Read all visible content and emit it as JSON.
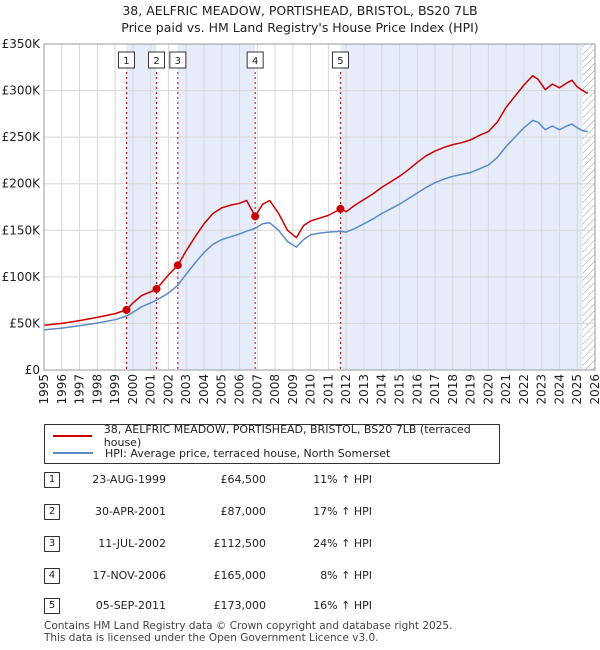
{
  "title_line1": "38, AELFRIC MEADOW, PORTISHEAD, BRISTOL, BS20 7LB",
  "title_line2": "Price paid vs. HM Land Registry's House Price Index (HPI)",
  "colors": {
    "price_line": "#cc0000",
    "hpi_line": "#5b8ac8",
    "shade": "#e6ecfa",
    "marker_line": "#cc0000",
    "grid": "#d8d8d8"
  },
  "chart_data": {
    "type": "line",
    "title": "38, AELFRIC MEADOW, PORTISHEAD, BRISTOL, BS20 7LB — Price paid vs. HM Land Registry's House Price Index (HPI)",
    "xlabel": "",
    "ylabel": "",
    "xlim": [
      1995,
      2026
    ],
    "ylim": [
      0,
      350000
    ],
    "yticks": [
      0,
      50000,
      100000,
      150000,
      200000,
      250000,
      300000,
      350000
    ],
    "ytick_labels": [
      "£0",
      "£50K",
      "£100K",
      "£150K",
      "£200K",
      "£250K",
      "£300K",
      "£350K"
    ],
    "xticks": [
      1995,
      1996,
      1997,
      1998,
      1999,
      2000,
      2001,
      2002,
      2003,
      2004,
      2005,
      2006,
      2007,
      2008,
      2009,
      2010,
      2011,
      2012,
      2013,
      2014,
      2015,
      2016,
      2017,
      2018,
      2019,
      2020,
      2021,
      2022,
      2023,
      2024,
      2025,
      2026
    ],
    "grid": true,
    "shaded_periods": [
      [
        1999.64,
        2001.33
      ],
      [
        2002.53,
        2006.88
      ],
      [
        2011.68,
        2025.3
      ]
    ],
    "future_hatch_from": 2025.3,
    "series": [
      {
        "name": "38, AELFRIC MEADOW, PORTISHEAD, BRISTOL, BS20 7LB (terraced house)",
        "color": "#cc0000",
        "x": [
          1995.0,
          1996.0,
          1997.0,
          1998.0,
          1999.0,
          1999.64,
          2000.0,
          2000.5,
          2001.0,
          2001.33,
          2002.0,
          2002.53,
          2003.0,
          2003.5,
          2004.0,
          2004.5,
          2005.0,
          2005.5,
          2006.0,
          2006.4,
          2006.88,
          2007.3,
          2007.7,
          2008.2,
          2008.7,
          2009.2,
          2009.6,
          2010.0,
          2010.5,
          2011.0,
          2011.68,
          2012.0,
          2012.5,
          2013.0,
          2013.5,
          2014.0,
          2014.5,
          2015.0,
          2015.5,
          2016.0,
          2016.5,
          2017.0,
          2017.5,
          2018.0,
          2018.5,
          2019.0,
          2019.5,
          2020.0,
          2020.5,
          2021.0,
          2021.5,
          2022.0,
          2022.5,
          2022.8,
          2023.2,
          2023.6,
          2024.0,
          2024.4,
          2024.7,
          2025.0,
          2025.3,
          2025.6
        ],
        "values": [
          48000,
          50000,
          53000,
          56500,
          60500,
          64500,
          72000,
          80000,
          84000,
          87000,
          102000,
          112500,
          128000,
          143000,
          157000,
          168000,
          174000,
          177000,
          179000,
          182000,
          165000,
          178000,
          182000,
          168000,
          150000,
          142000,
          155000,
          160000,
          163000,
          166000,
          173000,
          170000,
          177000,
          183000,
          189000,
          196000,
          202000,
          208000,
          215000,
          223000,
          230000,
          235000,
          239000,
          242000,
          244000,
          247000,
          252000,
          256000,
          266000,
          282000,
          294000,
          306000,
          316000,
          312000,
          301000,
          307000,
          303000,
          308000,
          311000,
          304000,
          300000,
          297000
        ]
      },
      {
        "name": "HPI: Average price, terraced house, North Somerset",
        "color": "#5b8ac8",
        "x": [
          1995.0,
          1996.0,
          1997.0,
          1998.0,
          1999.0,
          1999.64,
          2000.0,
          2000.5,
          2001.0,
          2001.33,
          2002.0,
          2002.53,
          2003.0,
          2003.5,
          2004.0,
          2004.5,
          2005.0,
          2005.5,
          2006.0,
          2006.4,
          2006.88,
          2007.3,
          2007.7,
          2008.2,
          2008.7,
          2009.2,
          2009.6,
          2010.0,
          2010.5,
          2011.0,
          2011.68,
          2012.0,
          2012.5,
          2013.0,
          2013.5,
          2014.0,
          2014.5,
          2015.0,
          2015.5,
          2016.0,
          2016.5,
          2017.0,
          2017.5,
          2018.0,
          2018.5,
          2019.0,
          2019.5,
          2020.0,
          2020.5,
          2021.0,
          2021.5,
          2022.0,
          2022.5,
          2022.8,
          2023.2,
          2023.6,
          2024.0,
          2024.4,
          2024.7,
          2025.0,
          2025.3,
          2025.6
        ],
        "values": [
          43000,
          45000,
          47500,
          50500,
          54000,
          58000,
          62000,
          68000,
          72000,
          75000,
          82500,
          91000,
          103000,
          115000,
          126000,
          135000,
          140000,
          143000,
          146000,
          149000,
          152000,
          157000,
          158000,
          150000,
          138000,
          132000,
          140000,
          145000,
          147000,
          148000,
          149000,
          148000,
          152000,
          157000,
          162000,
          168000,
          173000,
          178000,
          184000,
          190000,
          196000,
          201000,
          205000,
          208000,
          210000,
          212000,
          216000,
          220000,
          228000,
          240000,
          250000,
          260000,
          268000,
          266000,
          258000,
          262000,
          258000,
          262000,
          264000,
          260000,
          257000,
          256000
        ]
      }
    ],
    "markers": [
      {
        "label": "1",
        "x": 1999.64,
        "y": 64500
      },
      {
        "label": "2",
        "x": 2001.33,
        "y": 87000
      },
      {
        "label": "3",
        "x": 2002.53,
        "y": 112500
      },
      {
        "label": "4",
        "x": 2006.88,
        "y": 165000
      },
      {
        "label": "5",
        "x": 2011.68,
        "y": 173000
      }
    ]
  },
  "legend": {
    "price_label": "38, AELFRIC MEADOW, PORTISHEAD, BRISTOL, BS20 7LB (terraced house)",
    "hpi_label": "HPI: Average price, terraced house, North Somerset"
  },
  "sales": [
    {
      "num": "1",
      "date": "23-AUG-1999",
      "price": "£64,500",
      "hpi": "11% ↑ HPI"
    },
    {
      "num": "2",
      "date": "30-APR-2001",
      "price": "£87,000",
      "hpi": "17% ↑ HPI"
    },
    {
      "num": "3",
      "date": "11-JUL-2002",
      "price": "£112,500",
      "hpi": "24% ↑ HPI"
    },
    {
      "num": "4",
      "date": "17-NOV-2006",
      "price": "£165,000",
      "hpi": "8% ↑ HPI"
    },
    {
      "num": "5",
      "date": "05-SEP-2011",
      "price": "£173,000",
      "hpi": "16% ↑ HPI"
    }
  ],
  "footer_line1": "Contains HM Land Registry data © Crown copyright and database right 2025.",
  "footer_line2": "This data is licensed under the Open Government Licence v3.0."
}
